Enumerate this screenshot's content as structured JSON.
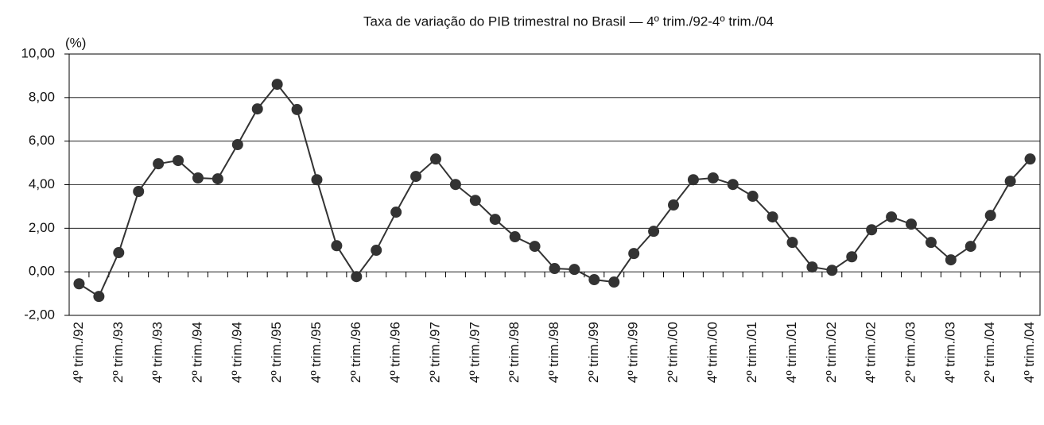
{
  "chart_data": {
    "type": "line",
    "title": "Taxa de variação do PIB trimestral no Brasil —  4º trim./92-4º trim./04",
    "y_label": "(%)",
    "categories": [
      "4º trim./92",
      null,
      "2º trim./93",
      null,
      "4º trim./93",
      null,
      "2º trim./94",
      null,
      "4º trim./94",
      null,
      "2º trim./95",
      null,
      "4º trim./95",
      null,
      "2º trim./96",
      null,
      "4º trim./96",
      null,
      "2º trim./97",
      null,
      "4º trim./97",
      null,
      "2º trim./98",
      null,
      "4º trim./98",
      null,
      "2º trim./99",
      null,
      "4º trim./99",
      null,
      "2º trim./00",
      null,
      "4º trim./00",
      null,
      "2º trim./01",
      null,
      "4º trim./01",
      null,
      "2º trim./02",
      null,
      "4º trim./02",
      null,
      "2º trim./03",
      null,
      "4º trim./03",
      null,
      "2º trim./04",
      null,
      "4º trim./04"
    ],
    "values": [
      -0.55,
      -1.13,
      0.88,
      3.69,
      4.96,
      5.11,
      4.31,
      4.27,
      5.84,
      7.48,
      8.61,
      7.45,
      4.23,
      1.2,
      -0.22,
      0.99,
      2.74,
      4.38,
      5.18,
      4.01,
      3.28,
      2.41,
      1.61,
      1.17,
      0.15,
      0.11,
      -0.36,
      -0.47,
      0.84,
      1.86,
      3.07,
      4.23,
      4.31,
      4.01,
      3.47,
      2.52,
      1.35,
      0.22,
      0.07,
      0.69,
      1.93,
      2.52,
      2.19,
      1.35,
      0.55,
      1.17,
      2.59,
      4.16,
      5.18
    ],
    "color": "#333333",
    "ylim": [
      -2,
      10
    ],
    "yticks": [
      {
        "value": -2,
        "label": "-2,00"
      },
      {
        "value": 0,
        "label": "0,00"
      },
      {
        "value": 2,
        "label": "2,00"
      },
      {
        "value": 4,
        "label": "4,00"
      },
      {
        "value": 6,
        "label": "6,00"
      },
      {
        "value": 8,
        "label": "8,00"
      },
      {
        "value": 10,
        "label": "10,00"
      }
    ],
    "grid": true
  }
}
